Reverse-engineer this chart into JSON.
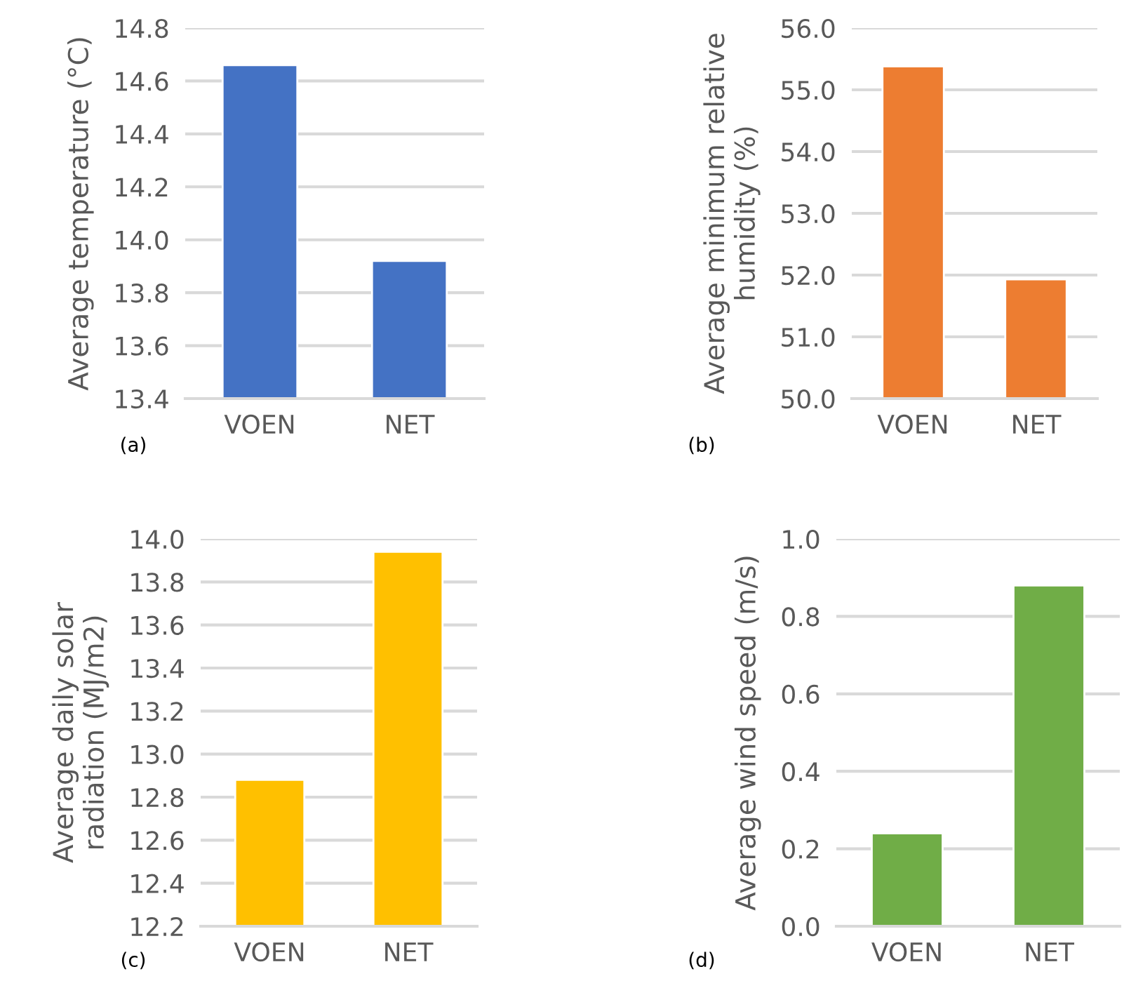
{
  "chart_data": [
    {
      "type": "bar",
      "categories": [
        "VOEN",
        "NET"
      ],
      "values": [
        14.66,
        13.92
      ],
      "color": "#4472c4",
      "ylabel": "Average temperature (°C)",
      "ylim": [
        13.4,
        14.8
      ],
      "yticks": [
        {
          "value": 13.4,
          "label": "13.4"
        },
        {
          "value": 13.6,
          "label": "13.6"
        },
        {
          "value": 13.8,
          "label": "13.8"
        },
        {
          "value": 14.0,
          "label": "14.0"
        },
        {
          "value": 14.2,
          "label": "14.2"
        },
        {
          "value": 14.4,
          "label": "14.4"
        },
        {
          "value": 14.6,
          "label": "14.6"
        },
        {
          "value": 14.8,
          "label": "14.8"
        }
      ],
      "grid": "y",
      "legend": false,
      "annotations": [
        "(a)"
      ]
    },
    {
      "type": "bar",
      "categories": [
        "VOEN",
        "NET"
      ],
      "values": [
        55.38,
        51.93
      ],
      "color": "#ed7d31",
      "ylabel": "Average minimum relative\nhumidity (%)",
      "ylim": [
        50.0,
        56.0
      ],
      "yticks": [
        {
          "value": 50.0,
          "label": "50.0"
        },
        {
          "value": 51.0,
          "label": "51.0"
        },
        {
          "value": 52.0,
          "label": "52.0"
        },
        {
          "value": 53.0,
          "label": "53.0"
        },
        {
          "value": 54.0,
          "label": "54.0"
        },
        {
          "value": 55.0,
          "label": "55.0"
        },
        {
          "value": 56.0,
          "label": "56.0"
        }
      ],
      "grid": "y",
      "legend": false,
      "annotations": [
        "(b)"
      ]
    },
    {
      "type": "bar",
      "categories": [
        "VOEN",
        "NET"
      ],
      "values": [
        12.88,
        13.94
      ],
      "color": "#ffc000",
      "ylabel": "Average daily solar\nradiation (MJ/m2)",
      "ylim": [
        12.2,
        14.0
      ],
      "yticks": [
        {
          "value": 12.2,
          "label": "12.2"
        },
        {
          "value": 12.4,
          "label": "12.4"
        },
        {
          "value": 12.6,
          "label": "12.6"
        },
        {
          "value": 12.8,
          "label": "12.8"
        },
        {
          "value": 13.0,
          "label": "13.0"
        },
        {
          "value": 13.2,
          "label": "13.2"
        },
        {
          "value": 13.4,
          "label": "13.4"
        },
        {
          "value": 13.6,
          "label": "13.6"
        },
        {
          "value": 13.8,
          "label": "13.8"
        },
        {
          "value": 14.0,
          "label": "14.0"
        }
      ],
      "grid": "y",
      "legend": false,
      "annotations": [
        "(c)"
      ]
    },
    {
      "type": "bar",
      "categories": [
        "VOEN",
        "NET"
      ],
      "values": [
        0.24,
        0.88
      ],
      "color": "#70ad47",
      "ylabel": "Average wind speed (m/s)",
      "ylim": [
        0.0,
        1.0
      ],
      "yticks": [
        {
          "value": 0.0,
          "label": "0.0"
        },
        {
          "value": 0.2,
          "label": "0.2"
        },
        {
          "value": 0.4,
          "label": "0.4"
        },
        {
          "value": 0.6,
          "label": "0.6"
        },
        {
          "value": 0.8,
          "label": "0.8"
        },
        {
          "value": 1.0,
          "label": "1.0"
        }
      ],
      "grid": "y",
      "legend": false,
      "annotations": [
        "(d)"
      ]
    }
  ]
}
